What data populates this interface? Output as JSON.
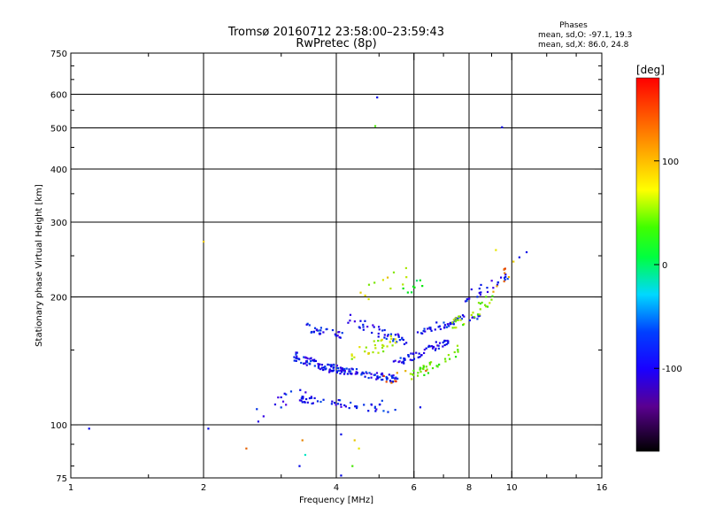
{
  "chart_data": {
    "type": "scatter",
    "title": "Tromsø 20160712 23:58:00–23:59:43",
    "subtitle": "RwPretec (8p)",
    "xlabel": "Frequency [MHz]",
    "ylabel": "Stationary phase Virtual Height [km]",
    "x_scale": "log",
    "y_scale": "log",
    "xlim": [
      1,
      16
    ],
    "ylim": [
      75,
      750
    ],
    "x_ticks": [
      1,
      2,
      4,
      6,
      8,
      10,
      16
    ],
    "x_minor_ticks": [
      1.5,
      3,
      5,
      7,
      9,
      12,
      14
    ],
    "y_ticks": [
      75,
      100,
      200,
      300,
      400,
      500,
      600,
      750
    ],
    "y_minor_ticks": [
      80,
      90,
      150,
      250,
      350,
      450,
      550,
      650,
      700
    ],
    "x_grid": [
      2,
      4,
      6,
      8,
      10
    ],
    "y_grid": [
      100,
      200,
      300,
      400,
      500,
      600
    ],
    "grid": true,
    "stats": {
      "heading": "Phases",
      "line_o": "mean, sd,O: -97.1, 19.3",
      "line_x": "mean, sd,X:  86.0, 24.8"
    },
    "colorbar": {
      "label": "[deg]",
      "ticks": [
        100,
        0,
        -100
      ],
      "range": [
        -180,
        180
      ],
      "position": "right"
    },
    "traces": [
      {
        "xr": [
          3.2,
          4.0
        ],
        "y0": 145,
        "y1": 135,
        "phase": -100,
        "n": 70,
        "spread": 0.025
      },
      {
        "xr": [
          4.0,
          5.5
        ],
        "y0": 135,
        "y1": 128,
        "phase": -100,
        "n": 80,
        "spread": 0.02
      },
      {
        "xr": [
          5.3,
          7.2
        ],
        "y0": 138,
        "y1": 158,
        "phase": -100,
        "n": 55,
        "spread": 0.02
      },
      {
        "xr": [
          6.0,
          8.5
        ],
        "y0": 165,
        "y1": 182,
        "phase": -100,
        "n": 50,
        "spread": 0.02
      },
      {
        "xr": [
          3.4,
          4.1
        ],
        "y0": 170,
        "y1": 162,
        "phase": -100,
        "n": 30,
        "spread": 0.02
      },
      {
        "xr": [
          4.2,
          5.8
        ],
        "y0": 180,
        "y1": 155,
        "phase": -100,
        "n": 40,
        "spread": 0.03
      },
      {
        "xr": [
          3.3,
          4.2
        ],
        "y0": 115,
        "y1": 112,
        "phase": -100,
        "n": 30,
        "spread": 0.02
      },
      {
        "xr": [
          4.3,
          5.5
        ],
        "y0": 112,
        "y1": 110,
        "phase": -100,
        "n": 20,
        "spread": 0.03
      },
      {
        "xr": [
          2.6,
          3.4
        ],
        "y0": 105,
        "y1": 120,
        "phase": -100,
        "n": 15,
        "spread": 0.04
      },
      {
        "xr": [
          7.8,
          9.8
        ],
        "y0": 200,
        "y1": 222,
        "phase": -100,
        "n": 25,
        "spread": 0.03
      },
      {
        "xr": [
          4.3,
          5.5
        ],
        "y0": 145,
        "y1": 160,
        "phase": 95,
        "n": 30,
        "spread": 0.04
      },
      {
        "xr": [
          5.8,
          7.6
        ],
        "y0": 128,
        "y1": 150,
        "phase": 70,
        "n": 35,
        "spread": 0.03
      },
      {
        "xr": [
          7.2,
          9.3
        ],
        "y0": 170,
        "y1": 200,
        "phase": 80,
        "n": 30,
        "spread": 0.04
      },
      {
        "xr": [
          4.5,
          6.0
        ],
        "y0": 200,
        "y1": 230,
        "phase": 100,
        "n": 12,
        "spread": 0.05
      },
      {
        "xr": [
          5.0,
          6.5
        ],
        "y0": 125,
        "y1": 140,
        "phase": 150,
        "n": 8,
        "spread": 0.04
      },
      {
        "xr": [
          8.8,
          10.2
        ],
        "y0": 205,
        "y1": 240,
        "phase": 140,
        "n": 8,
        "spread": 0.04
      },
      {
        "xr": [
          5.6,
          6.5
        ],
        "y0": 200,
        "y1": 215,
        "phase": 20,
        "n": 8,
        "spread": 0.05
      }
    ],
    "points": [
      {
        "x": 1.1,
        "y": 98,
        "phase": -100
      },
      {
        "x": 2.05,
        "y": 98,
        "phase": -100
      },
      {
        "x": 2.0,
        "y": 270,
        "phase": 120
      },
      {
        "x": 2.5,
        "y": 88,
        "phase": 150
      },
      {
        "x": 4.95,
        "y": 590,
        "phase": -100
      },
      {
        "x": 4.9,
        "y": 505,
        "phase": 60
      },
      {
        "x": 9.5,
        "y": 502,
        "phase": -100
      },
      {
        "x": 3.35,
        "y": 92,
        "phase": 140
      },
      {
        "x": 3.4,
        "y": 85,
        "phase": -20
      },
      {
        "x": 3.3,
        "y": 80,
        "phase": -100
      },
      {
        "x": 4.4,
        "y": 92,
        "phase": 120
      },
      {
        "x": 4.5,
        "y": 88,
        "phase": 110
      },
      {
        "x": 4.35,
        "y": 80,
        "phase": 60
      },
      {
        "x": 4.1,
        "y": 76,
        "phase": -100
      },
      {
        "x": 10.8,
        "y": 255,
        "phase": -100
      },
      {
        "x": 10.4,
        "y": 248,
        "phase": -100
      },
      {
        "x": 9.6,
        "y": 232,
        "phase": 150
      },
      {
        "x": 9.2,
        "y": 258,
        "phase": 110
      },
      {
        "x": 4.1,
        "y": 95,
        "phase": -100
      },
      {
        "x": 6.2,
        "y": 110,
        "phase": -100
      }
    ]
  }
}
